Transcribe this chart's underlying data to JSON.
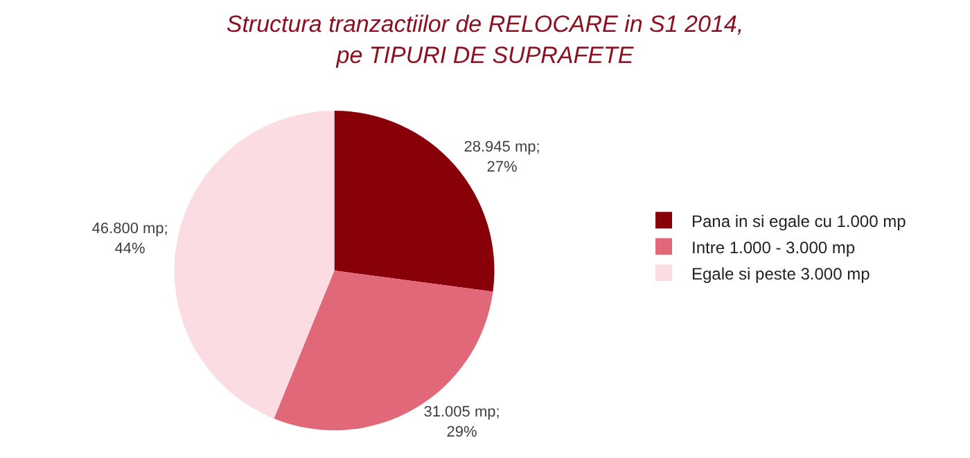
{
  "chart_data": {
    "type": "pie",
    "title": "Structura tranzactiilor de RELOCARE in S1 2014,\npe TIPURI DE SUPRAFETE",
    "categories": [
      "Pana in si egale cu 1.000 mp",
      "Intre 1.000 - 3.000 mp",
      "Egale si peste 3.000 mp"
    ],
    "values": [
      28945,
      31005,
      46800
    ],
    "colors": [
      "#880008",
      "#e06878",
      "#fadce2"
    ],
    "value_labels": [
      "28.945 mp;\n27%",
      "31.005 mp;\n29%",
      "46.800 mp;\n44%"
    ],
    "legend": "right"
  }
}
